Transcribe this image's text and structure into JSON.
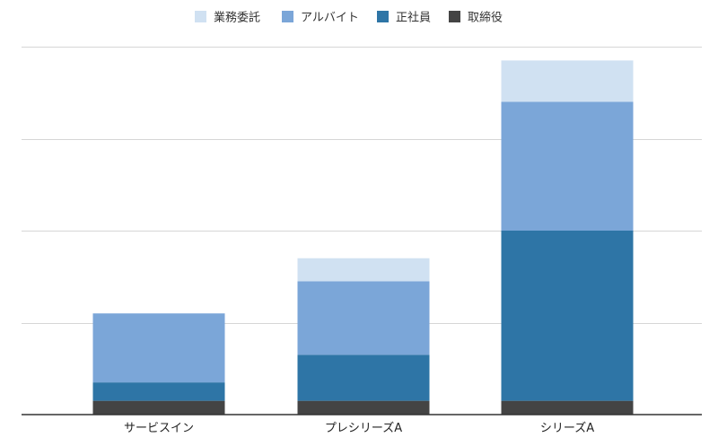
{
  "chart_data": {
    "type": "bar",
    "stacked": true,
    "categories": [
      "サービスイン",
      "プレシリーズA",
      "シリーズA"
    ],
    "series": [
      {
        "name": "取締役",
        "color": "#444444",
        "values": [
          0.3,
          0.3,
          0.3
        ]
      },
      {
        "name": "正社員",
        "color": "#2e75a6",
        "values": [
          0.4,
          1.0,
          3.7
        ]
      },
      {
        "name": "アルバイト",
        "color": "#7ba6d8",
        "values": [
          1.5,
          1.6,
          2.8
        ]
      },
      {
        "name": "業務委託",
        "color": "#d0e1f2",
        "values": [
          0,
          0.5,
          0.9
        ]
      }
    ],
    "ylim": [
      0,
      8
    ],
    "y_gridlines": [
      0,
      2,
      4,
      6,
      8
    ],
    "y_tick_labels_shown": false,
    "grid": true,
    "legend_position": "top-center",
    "legend_order": [
      "業務委託",
      "アルバイト",
      "正社員",
      "取締役"
    ]
  }
}
